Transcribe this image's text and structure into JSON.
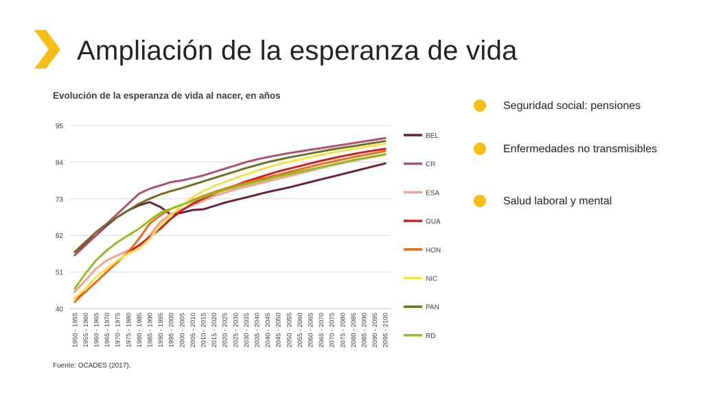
{
  "slide": {
    "title": "Ampliación de la esperanza de vida",
    "accent_color": "#f5be16",
    "icon": "chevron-right-icon"
  },
  "bullets": [
    {
      "text": "Seguridad social: pensiones"
    },
    {
      "text": "Enfermedades no transmisibles"
    },
    {
      "text": "Salud laboral y mental"
    }
  ],
  "source": "Fuente: OCADES (2017).",
  "chart_data": {
    "type": "line",
    "title": "Evolución de la esperanza de vida al nacer, en años",
    "xlabel": "",
    "ylabel": "",
    "ylim": [
      40,
      95
    ],
    "yticks": [
      40,
      51,
      62,
      73,
      84,
      95
    ],
    "grid": true,
    "legend_position": "right",
    "categories": [
      "1950 - 1955",
      "1955 - 1960",
      "1960 - 1965",
      "1965 - 1970",
      "1970 - 1975",
      "1975 - 1980",
      "1980 - 1985",
      "1985 - 1990",
      "1990 - 1995",
      "1995 - 2000",
      "2000 - 2005",
      "2005 - 2010",
      "2010 - 2015",
      "2015 - 2020",
      "2020 - 2025",
      "2025 - 2030",
      "2030 - 2035",
      "2035 - 2040",
      "2040 - 2045",
      "2045 - 2050",
      "2050 - 2055",
      "2055 - 2060",
      "2060 - 2065",
      "2065 - 2070",
      "2070 - 2075",
      "2075 - 2080",
      "2080 - 2085",
      "2085 - 2090",
      "2090 - 2095",
      "2095 - 2100"
    ],
    "series": [
      {
        "name": "BEL",
        "color": "#6b1f3a",
        "values": [
          57,
          59.5,
          62,
          65,
          67.5,
          69.5,
          71,
          72,
          70.5,
          68.2,
          68.8,
          69.6,
          69.8,
          70.8,
          71.8,
          72.6,
          73.4,
          74.2,
          75,
          75.7,
          76.4,
          77.2,
          78,
          78.8,
          79.6,
          80.4,
          81.2,
          82,
          82.8,
          83.6
        ]
      },
      {
        "name": "CR",
        "color": "#b0506b",
        "values": [
          56,
          59,
          62,
          65.5,
          68.5,
          71.5,
          74.5,
          76,
          77,
          78,
          78.5,
          79.2,
          80,
          81,
          82,
          83,
          84,
          84.8,
          85.5,
          86.1,
          86.7,
          87.2,
          87.7,
          88.2,
          88.7,
          89.2,
          89.7,
          90.2,
          90.7,
          91.2
        ]
      },
      {
        "name": "ESA",
        "color": "#f4a092",
        "values": [
          45,
          48.5,
          52,
          54.5,
          56,
          57.5,
          58,
          62,
          66,
          68.5,
          69.8,
          71,
          72.3,
          73.8,
          74.8,
          75.8,
          76.6,
          77.4,
          78.2,
          79,
          79.8,
          80.6,
          81.4,
          82.2,
          83,
          83.7,
          84.4,
          85,
          85.6,
          86.2
        ]
      },
      {
        "name": "GUA",
        "color": "#c91f1f",
        "values": [
          43,
          45,
          48,
          51,
          54,
          57,
          59,
          61.5,
          64,
          67,
          69.5,
          71.5,
          73,
          74.5,
          75.8,
          77,
          78.2,
          79.2,
          80.2,
          81.2,
          82,
          82.8,
          83.6,
          84.4,
          85.1,
          85.8,
          86.4,
          87,
          87.5,
          88
        ]
      },
      {
        "name": "HON",
        "color": "#ea6e1c",
        "values": [
          42,
          45,
          48,
          51,
          54,
          57,
          61,
          65.5,
          68,
          70,
          71.2,
          72.5,
          73.8,
          75,
          76,
          77,
          77.8,
          78.6,
          79.4,
          80.2,
          81,
          81.8,
          82.6,
          83.4,
          84.1,
          84.8,
          85.5,
          86.1,
          86.7,
          87.3
        ]
      },
      {
        "name": "NIC",
        "color": "#f3e24a",
        "values": [
          43,
          46,
          49.5,
          52,
          54.5,
          56.5,
          58,
          61,
          65,
          68,
          71,
          73.5,
          75.3,
          76.8,
          78,
          79.2,
          80.3,
          81.4,
          82.4,
          83.3,
          84.1,
          84.8,
          85.5,
          86.2,
          86.8,
          87.4,
          88,
          88.5,
          89,
          89.5
        ]
      },
      {
        "name": "PAN",
        "color": "#6e6f22",
        "values": [
          57,
          60,
          63,
          65.5,
          67.5,
          69.5,
          71.5,
          73,
          74.3,
          75.3,
          76.2,
          77.2,
          78.2,
          79.2,
          80.2,
          81.2,
          82.2,
          83.1,
          84,
          84.7,
          85.4,
          86,
          86.6,
          87.2,
          87.8,
          88.3,
          88.8,
          89.3,
          89.8,
          90.3
        ]
      },
      {
        "name": "RD",
        "color": "#8fbd1d",
        "values": [
          46,
          50.5,
          54.5,
          57.5,
          60,
          62,
          64,
          66.5,
          68.8,
          70,
          71.2,
          72.3,
          73.5,
          74.6,
          75.6,
          76.5,
          77.3,
          78.1,
          78.9,
          79.7,
          80.4,
          81.1,
          81.8,
          82.5,
          83.2,
          83.9,
          84.6,
          85.2,
          85.8,
          86.4
        ]
      }
    ]
  }
}
